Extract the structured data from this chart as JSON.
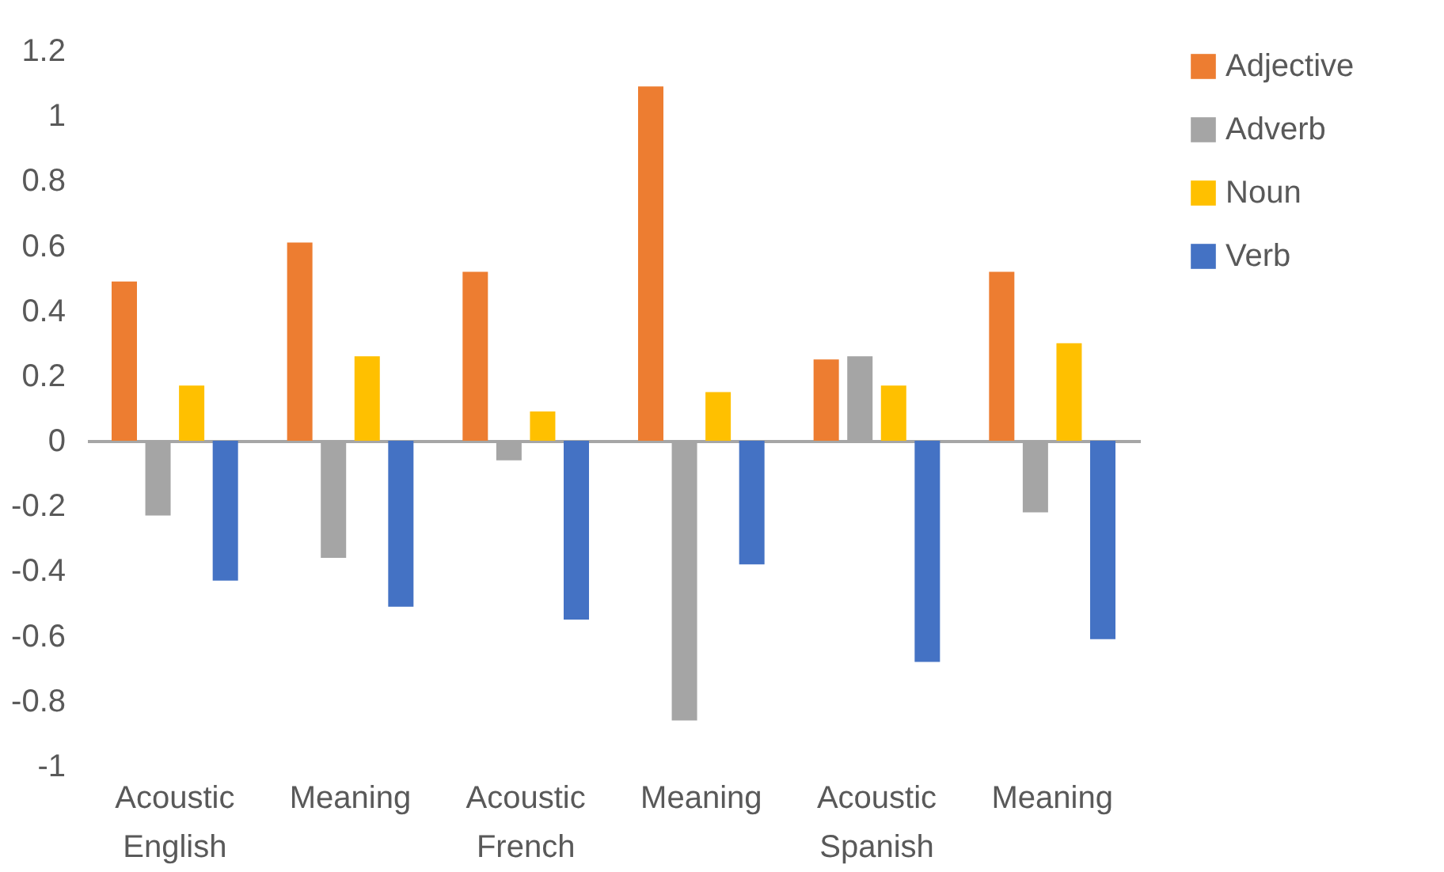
{
  "chart_data": {
    "type": "bar",
    "categories": [
      "Acoustic English",
      "Meaning",
      "Acoustic French",
      "Meaning",
      "Acoustic Spanish",
      "Meaning"
    ],
    "series": [
      {
        "name": "Adjective",
        "color": "#ed7d31",
        "values": [
          0.49,
          0.61,
          0.52,
          1.09,
          0.25,
          0.52
        ]
      },
      {
        "name": "Adverb",
        "color": "#a5a5a5",
        "values": [
          -0.23,
          -0.36,
          -0.06,
          -0.86,
          0.26,
          -0.22
        ]
      },
      {
        "name": "Noun",
        "color": "#ffc000",
        "values": [
          0.17,
          0.26,
          0.09,
          0.15,
          0.17,
          0.3
        ]
      },
      {
        "name": "Verb",
        "color": "#4472c4",
        "values": [
          -0.43,
          -0.51,
          -0.55,
          -0.38,
          -0.68,
          -0.61
        ]
      }
    ],
    "ylim": [
      -1,
      1.2
    ],
    "yticks": [
      -1,
      -0.8,
      -0.6,
      -0.4,
      -0.2,
      0,
      0.2,
      0.4,
      0.6,
      0.8,
      1,
      1.2
    ],
    "legend": "right"
  }
}
